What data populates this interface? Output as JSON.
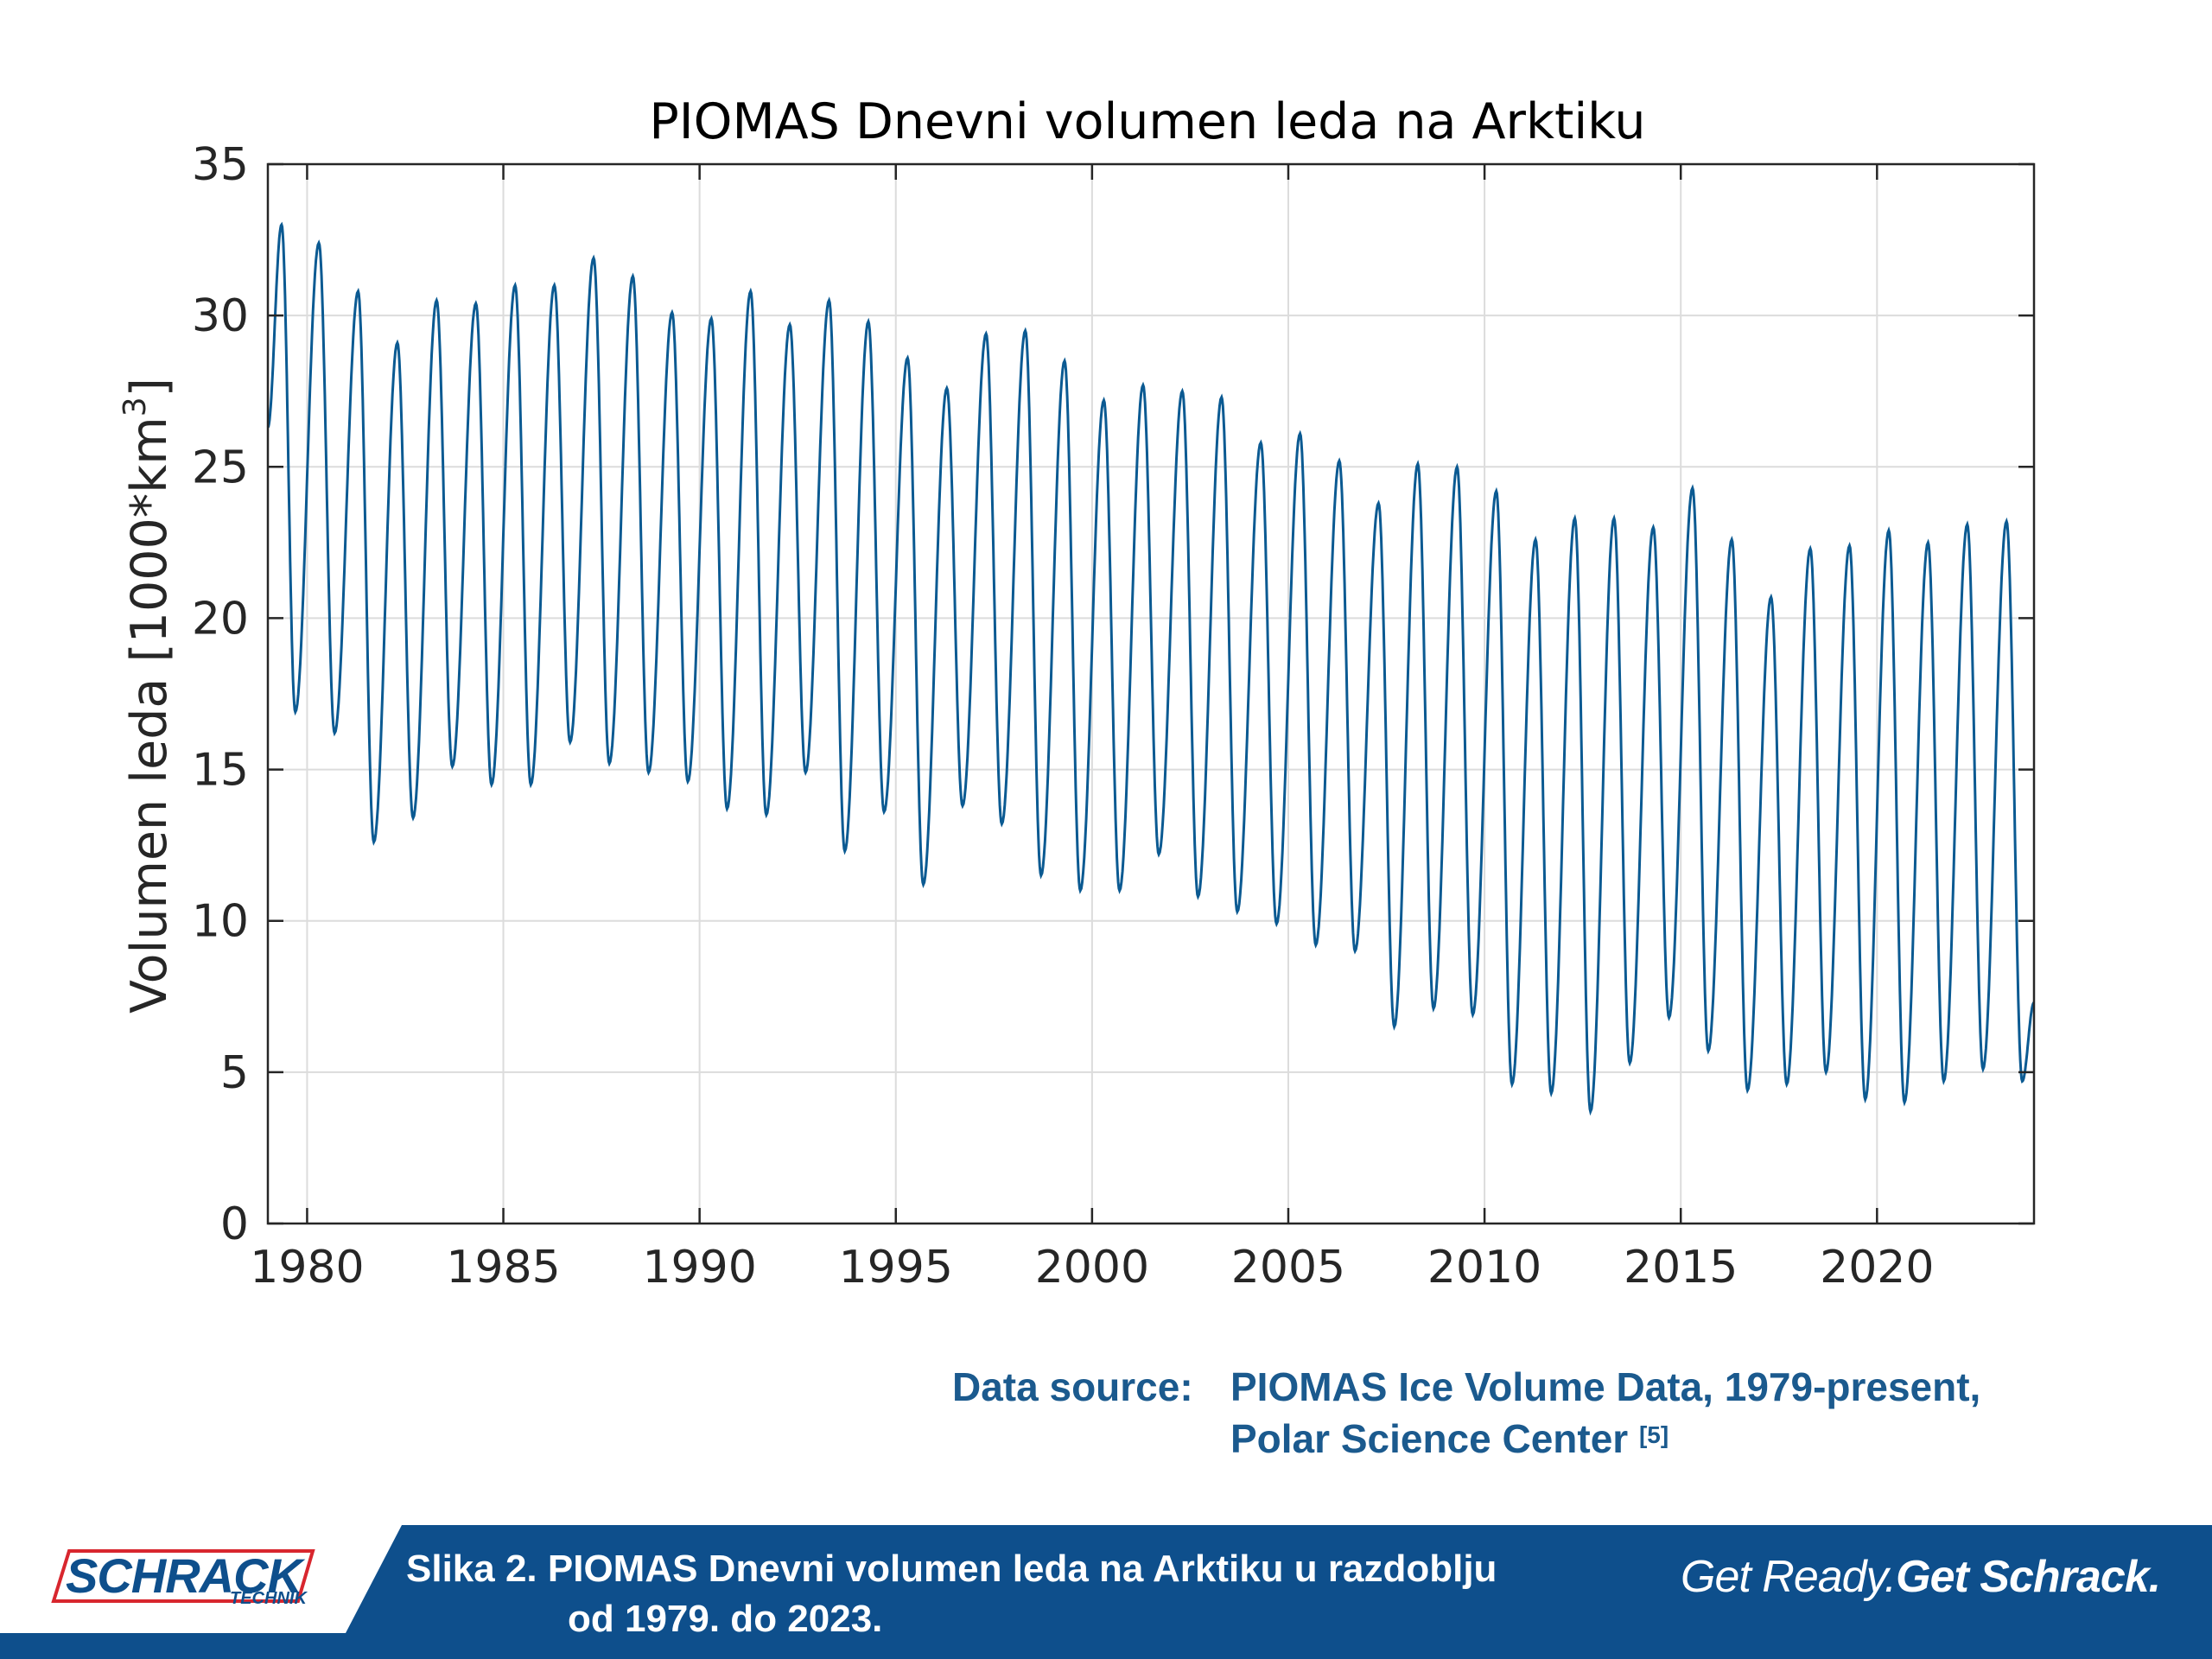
{
  "chart_data": {
    "type": "line",
    "title": "PIOMAS Dnevni volumen leda na Arktiku",
    "xlabel": "",
    "ylabel": "Volumen leda [1000*km",
    "ylabel_sup": "3",
    "ylabel_end": "]",
    "xlim": [
      1979,
      2024
    ],
    "ylim": [
      0,
      35
    ],
    "xticks": [
      "1980",
      "1985",
      "1990",
      "1995",
      "2000",
      "2005",
      "2010",
      "2015",
      "2020"
    ],
    "yticks": [
      "0",
      "5",
      "10",
      "15",
      "20",
      "25",
      "30",
      "35"
    ],
    "grid": true,
    "series_color": "#0b5a92",
    "start": {
      "x": 1979.0,
      "y": 26.3
    },
    "end": {
      "x": 2024.0,
      "y": 7.3
    },
    "annual_max": [
      {
        "x": 1979.35,
        "y": 33.0
      },
      {
        "x": 1980.3,
        "y": 32.4
      },
      {
        "x": 1981.3,
        "y": 30.8
      },
      {
        "x": 1982.3,
        "y": 29.1
      },
      {
        "x": 1983.3,
        "y": 30.5
      },
      {
        "x": 1984.3,
        "y": 30.4
      },
      {
        "x": 1985.3,
        "y": 31.0
      },
      {
        "x": 1986.3,
        "y": 31.0
      },
      {
        "x": 1987.3,
        "y": 31.9
      },
      {
        "x": 1988.3,
        "y": 31.3
      },
      {
        "x": 1989.3,
        "y": 30.1
      },
      {
        "x": 1990.3,
        "y": 29.9
      },
      {
        "x": 1991.3,
        "y": 30.8
      },
      {
        "x": 1992.3,
        "y": 29.7
      },
      {
        "x": 1993.3,
        "y": 30.5
      },
      {
        "x": 1994.3,
        "y": 29.8
      },
      {
        "x": 1995.3,
        "y": 28.6
      },
      {
        "x": 1996.3,
        "y": 27.6
      },
      {
        "x": 1997.3,
        "y": 29.4
      },
      {
        "x": 1998.3,
        "y": 29.5
      },
      {
        "x": 1999.3,
        "y": 28.5
      },
      {
        "x": 2000.3,
        "y": 27.2
      },
      {
        "x": 2001.3,
        "y": 27.7
      },
      {
        "x": 2002.3,
        "y": 27.5
      },
      {
        "x": 2003.3,
        "y": 27.3
      },
      {
        "x": 2004.3,
        "y": 25.8
      },
      {
        "x": 2005.3,
        "y": 26.1
      },
      {
        "x": 2006.3,
        "y": 25.2
      },
      {
        "x": 2007.3,
        "y": 23.8
      },
      {
        "x": 2008.3,
        "y": 25.1
      },
      {
        "x": 2009.3,
        "y": 25.0
      },
      {
        "x": 2010.3,
        "y": 24.2
      },
      {
        "x": 2011.3,
        "y": 22.6
      },
      {
        "x": 2012.3,
        "y": 23.3
      },
      {
        "x": 2013.3,
        "y": 23.3
      },
      {
        "x": 2014.3,
        "y": 23.0
      },
      {
        "x": 2015.3,
        "y": 24.3
      },
      {
        "x": 2016.3,
        "y": 22.6
      },
      {
        "x": 2017.3,
        "y": 20.7
      },
      {
        "x": 2018.3,
        "y": 22.3
      },
      {
        "x": 2019.3,
        "y": 22.4
      },
      {
        "x": 2020.3,
        "y": 22.9
      },
      {
        "x": 2021.3,
        "y": 22.5
      },
      {
        "x": 2022.3,
        "y": 23.1
      },
      {
        "x": 2023.3,
        "y": 23.2
      }
    ],
    "annual_min": [
      {
        "x": 1979.7,
        "y": 16.9
      },
      {
        "x": 1980.7,
        "y": 16.2
      },
      {
        "x": 1981.7,
        "y": 12.6
      },
      {
        "x": 1982.7,
        "y": 13.4
      },
      {
        "x": 1983.7,
        "y": 15.1
      },
      {
        "x": 1984.7,
        "y": 14.5
      },
      {
        "x": 1985.7,
        "y": 14.5
      },
      {
        "x": 1986.7,
        "y": 15.9
      },
      {
        "x": 1987.7,
        "y": 15.2
      },
      {
        "x": 1988.7,
        "y": 14.9
      },
      {
        "x": 1989.7,
        "y": 14.6
      },
      {
        "x": 1990.7,
        "y": 13.7
      },
      {
        "x": 1991.7,
        "y": 13.5
      },
      {
        "x": 1992.7,
        "y": 14.9
      },
      {
        "x": 1993.7,
        "y": 12.3
      },
      {
        "x": 1994.7,
        "y": 13.6
      },
      {
        "x": 1995.7,
        "y": 11.2
      },
      {
        "x": 1996.7,
        "y": 13.8
      },
      {
        "x": 1997.7,
        "y": 13.2
      },
      {
        "x": 1998.7,
        "y": 11.5
      },
      {
        "x": 1999.7,
        "y": 11.0
      },
      {
        "x": 2000.7,
        "y": 11.0
      },
      {
        "x": 2001.7,
        "y": 12.2
      },
      {
        "x": 2002.7,
        "y": 10.8
      },
      {
        "x": 2003.7,
        "y": 10.3
      },
      {
        "x": 2004.7,
        "y": 9.9
      },
      {
        "x": 2005.7,
        "y": 9.2
      },
      {
        "x": 2006.7,
        "y": 9.0
      },
      {
        "x": 2007.7,
        "y": 6.5
      },
      {
        "x": 2008.7,
        "y": 7.1
      },
      {
        "x": 2009.7,
        "y": 6.9
      },
      {
        "x": 2010.7,
        "y": 4.6
      },
      {
        "x": 2011.7,
        "y": 4.3
      },
      {
        "x": 2012.7,
        "y": 3.7
      },
      {
        "x": 2013.7,
        "y": 5.3
      },
      {
        "x": 2014.7,
        "y": 6.8
      },
      {
        "x": 2015.7,
        "y": 5.7
      },
      {
        "x": 2016.7,
        "y": 4.4
      },
      {
        "x": 2017.7,
        "y": 4.6
      },
      {
        "x": 2018.7,
        "y": 5.0
      },
      {
        "x": 2019.7,
        "y": 4.1
      },
      {
        "x": 2020.7,
        "y": 4.0
      },
      {
        "x": 2021.7,
        "y": 4.7
      },
      {
        "x": 2022.7,
        "y": 5.1
      },
      {
        "x": 2023.7,
        "y": 4.7
      }
    ]
  },
  "source": {
    "label": "Data source:",
    "line1": "PIOMAS Ice Volume Data, 1979-present,",
    "line2": "Polar Science Center",
    "ref": "[5]"
  },
  "footer": {
    "logo_main": "SCHRACK",
    "logo_sub": "TECHNIK",
    "caption_line1": "Slika 2. PIOMAS Dnevni volumen leda na Arktiku u razdoblju",
    "caption_line2": "od 1979. do 2023.",
    "slogan_light": "Get Ready.",
    "slogan_bold": "Get Schrack.",
    "bg_color": "#0e4f8c",
    "logo_red": "#d8262e"
  }
}
